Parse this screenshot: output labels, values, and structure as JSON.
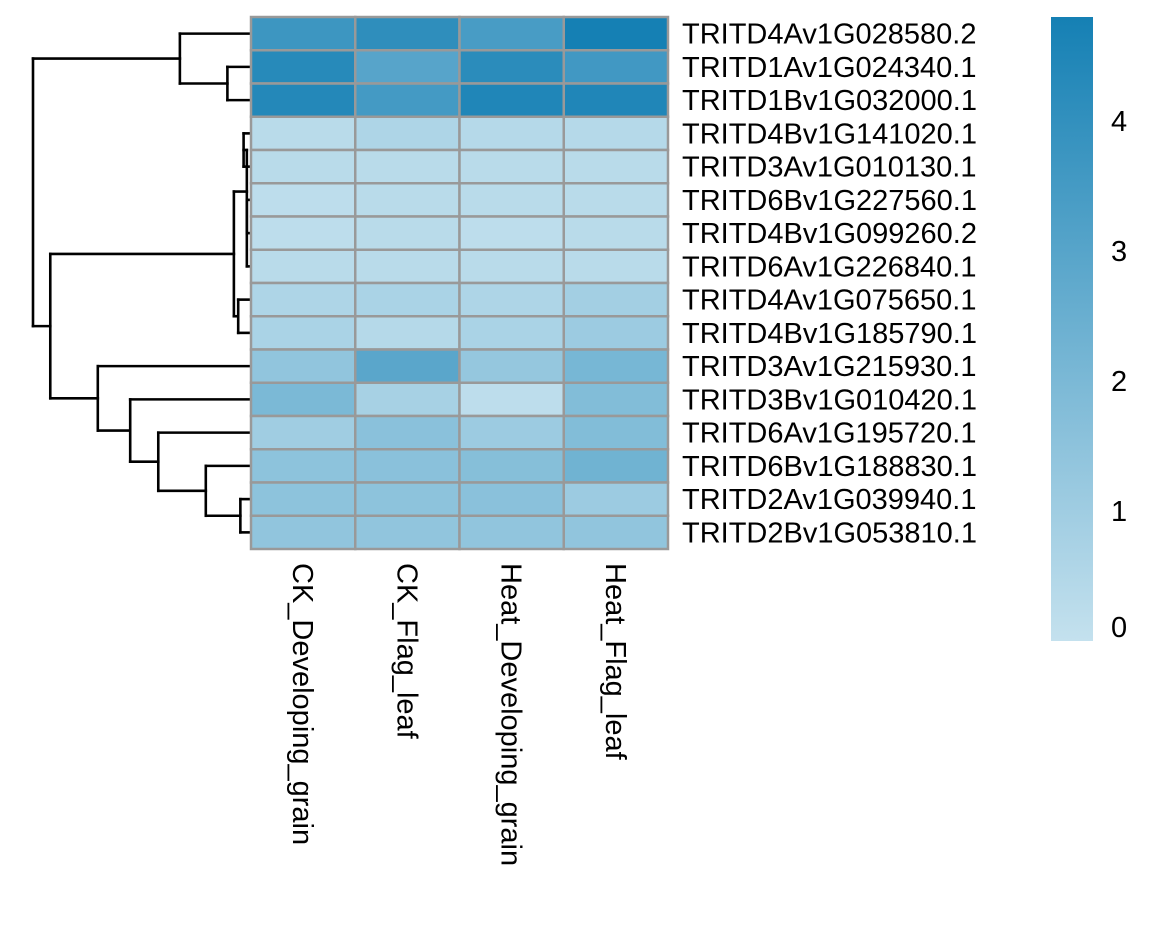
{
  "chart_data": {
    "type": "heatmap",
    "title": "",
    "xlabel": "",
    "ylabel": "",
    "columns": [
      "CK_Developing_grain",
      "CK_Flag_leaf",
      "Heat_Developing_grain",
      "Heat_Flag_leaf"
    ],
    "rows": [
      "TRITD4Av1G028580.2",
      "TRITD1Av1G024340.1",
      "TRITD1Bv1G032000.1",
      "TRITD4Bv1G141020.1",
      "TRITD3Av1G010130.1",
      "TRITD6Bv1G227560.1",
      "TRITD4Bv1G099260.2",
      "TRITD6Av1G226840.1",
      "TRITD4Av1G075650.1",
      "TRITD4Bv1G185790.1",
      "TRITD3Av1G215930.1",
      "TRITD3Bv1G010420.1",
      "TRITD6Av1G195720.1",
      "TRITD6Bv1G188830.1",
      "TRITD2Av1G039940.1",
      "TRITD2Bv1G053810.1"
    ],
    "values": [
      [
        3.7,
        4.1,
        3.4,
        4.8
      ],
      [
        4.3,
        3.0,
        4.2,
        3.6
      ],
      [
        4.4,
        3.5,
        4.5,
        4.5
      ],
      [
        0.3,
        0.6,
        0.4,
        0.4
      ],
      [
        0.3,
        0.3,
        0.3,
        0.3
      ],
      [
        0.2,
        0.3,
        0.3,
        0.3
      ],
      [
        0.2,
        0.3,
        0.2,
        0.3
      ],
      [
        0.3,
        0.3,
        0.3,
        0.3
      ],
      [
        0.6,
        0.7,
        0.6,
        0.9
      ],
      [
        0.7,
        0.4,
        0.7,
        1.1
      ],
      [
        1.4,
        2.9,
        1.3,
        2.1
      ],
      [
        2.0,
        0.8,
        0.2,
        1.8
      ],
      [
        1.0,
        1.6,
        1.1,
        1.8
      ],
      [
        1.5,
        1.6,
        1.7,
        2.3
      ],
      [
        1.5,
        1.5,
        1.6,
        1.1
      ],
      [
        1.4,
        1.4,
        1.4,
        1.4
      ]
    ],
    "color_scale": {
      "min": 0,
      "max": 4.8,
      "low_color": "#c4e1ee",
      "high_color": "#1580b4",
      "ticks": [
        "0",
        "1",
        "2",
        "3",
        "4"
      ],
      "tick_values": [
        0,
        1,
        2,
        3,
        4
      ]
    },
    "cell_border_color": "#999999",
    "dendrogram": {
      "side": "left",
      "tree": {
        "c": [
          {
            "h": 0.32,
            "c": [
              {
                "l": 0
              },
              {
                "h": 0.1,
                "c": [
                  {
                    "l": 1
                  },
                  {
                    "l": 2
                  }
                ]
              }
            ]
          },
          {
            "h": 0.92,
            "c": [
              {
                "h": 0.07,
                "c": [
                  {
                    "h": 0.01,
                    "c": [
                      {
                        "h": 0.025,
                        "c": [
                          {
                            "l": 3
                          },
                          {
                            "l": 4
                          }
                        ]
                      },
                      {
                        "h": 0.01,
                        "c": [
                          {
                            "l": 5
                          },
                          {
                            "l": 6
                          },
                          {
                            "l": 7
                          }
                        ]
                      }
                    ]
                  },
                  {
                    "h": 0.05,
                    "c": [
                      {
                        "l": 8
                      },
                      {
                        "l": 9
                      }
                    ]
                  }
                ]
              },
              {
                "h": 0.7,
                "c": [
                  {
                    "l": 10
                  },
                  {
                    "h": 0.55,
                    "c": [
                      {
                        "l": 11
                      },
                      {
                        "h": 0.42,
                        "c": [
                          {
                            "l": 12
                          },
                          {
                            "h": 0.2,
                            "c": [
                              {
                                "l": 13
                              },
                              {
                                "h": 0.04,
                                "c": [
                                  {
                                    "l": 14
                                  },
                                  {
                                    "l": 15
                                  }
                                ]
                              }
                            ]
                          }
                        ]
                      }
                    ]
                  }
                ]
              }
            ]
          }
        ]
      }
    }
  }
}
